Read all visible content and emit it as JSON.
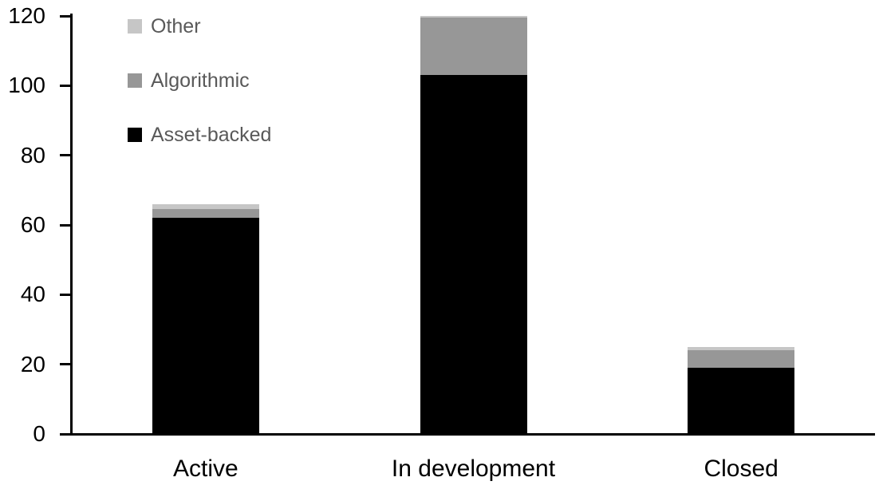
{
  "chart_data": {
    "type": "bar",
    "subtype": "stacked",
    "title": "",
    "xlabel": "",
    "ylabel": "",
    "categories": [
      "Active",
      "In development",
      "Closed"
    ],
    "series": [
      {
        "name": "Asset-backed",
        "color": "#000000",
        "values": [
          62,
          103,
          19
        ]
      },
      {
        "name": "Algorithmic",
        "color": "#979797",
        "values": [
          2.5,
          16.5,
          5
        ]
      },
      {
        "name": "Other",
        "color": "#c6c6c6",
        "values": [
          1.5,
          0.5,
          1
        ]
      }
    ],
    "totals": [
      66,
      120,
      25
    ],
    "ylim": [
      0,
      120
    ],
    "yticks": [
      0,
      20,
      40,
      60,
      80,
      100,
      120
    ],
    "grid": false,
    "legend": {
      "position": "top-left",
      "entries": [
        {
          "label": "Other",
          "color": "#c6c6c6"
        },
        {
          "label": "Algorithmic",
          "color": "#979797"
        },
        {
          "label": "Asset-backed",
          "color": "#000000"
        }
      ]
    }
  },
  "colors": {
    "background": "#ffffff",
    "axis": "#000000",
    "tick_label": "#000000",
    "x_label": "#000000",
    "legend_text": "#595959"
  }
}
